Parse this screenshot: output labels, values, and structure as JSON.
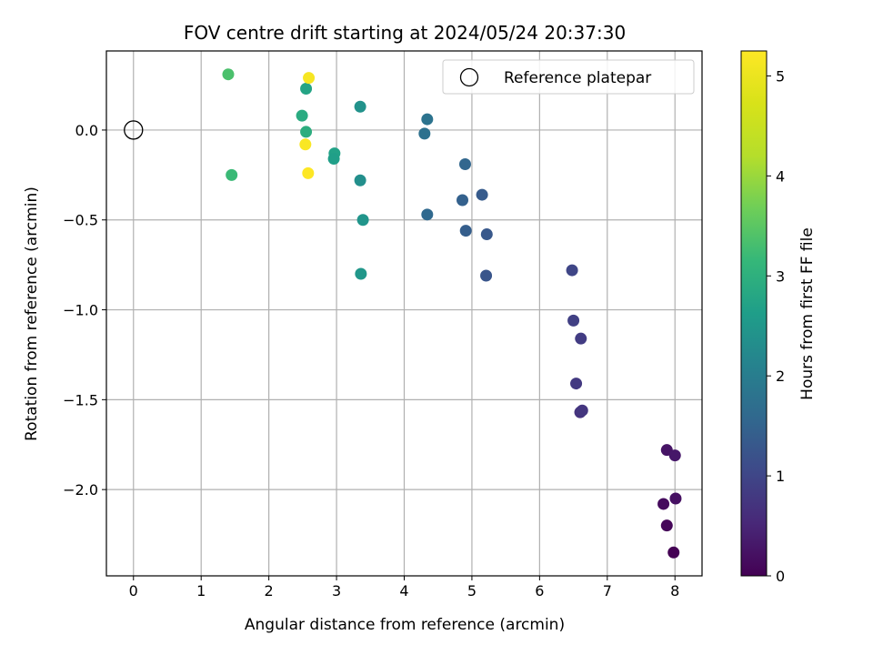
{
  "chart_data": {
    "type": "scatter",
    "title": "FOV centre drift starting at 2024/05/24 20:37:30",
    "xlabel": "Angular distance from reference (arcmin)",
    "ylabel": "Rotation from reference (arcmin)",
    "xlim": [
      -0.4,
      8.4
    ],
    "ylim": [
      -2.48,
      0.44
    ],
    "xticks": [
      0,
      1,
      2,
      3,
      4,
      5,
      6,
      7,
      8
    ],
    "yticks": [
      0.0,
      -0.5,
      -1.0,
      -1.5,
      -2.0
    ],
    "xtick_labels": [
      "0",
      "1",
      "2",
      "3",
      "4",
      "5",
      "6",
      "7",
      "8"
    ],
    "ytick_labels": [
      "0.0",
      "−0.5",
      "−1.0",
      "−1.5",
      "−2.0"
    ],
    "grid": true,
    "legend": {
      "position": "top-right",
      "entries": [
        "Reference platepar"
      ]
    },
    "reference_point": {
      "x": 0,
      "y": 0,
      "label": "Reference platepar"
    },
    "colorbar": {
      "label": "Hours from first FF file",
      "range": [
        0,
        5.25
      ],
      "ticks": [
        0,
        1,
        2,
        3,
        4,
        5
      ],
      "tick_labels": [
        "0",
        "1",
        "2",
        "3",
        "4",
        "5"
      ],
      "colormap": "viridis"
    },
    "points": [
      {
        "x": 7.98,
        "y": -2.35,
        "hours": 0.0
      },
      {
        "x": 7.88,
        "y": -2.2,
        "hours": 0.08
      },
      {
        "x": 7.83,
        "y": -2.08,
        "hours": 0.13
      },
      {
        "x": 8.01,
        "y": -2.05,
        "hours": 0.2
      },
      {
        "x": 7.88,
        "y": -1.78,
        "hours": 0.25
      },
      {
        "x": 8.0,
        "y": -1.81,
        "hours": 0.3
      },
      {
        "x": 6.6,
        "y": -1.57,
        "hours": 0.7
      },
      {
        "x": 6.63,
        "y": -1.56,
        "hours": 0.75
      },
      {
        "x": 6.54,
        "y": -1.41,
        "hours": 0.8
      },
      {
        "x": 6.61,
        "y": -1.16,
        "hours": 0.85
      },
      {
        "x": 6.5,
        "y": -1.06,
        "hours": 0.9
      },
      {
        "x": 6.48,
        "y": -0.78,
        "hours": 1.0
      },
      {
        "x": 5.21,
        "y": -0.81,
        "hours": 1.25
      },
      {
        "x": 5.22,
        "y": -0.58,
        "hours": 1.3
      },
      {
        "x": 4.91,
        "y": -0.56,
        "hours": 1.4
      },
      {
        "x": 5.15,
        "y": -0.36,
        "hours": 1.35
      },
      {
        "x": 4.86,
        "y": -0.39,
        "hours": 1.45
      },
      {
        "x": 4.9,
        "y": -0.19,
        "hours": 1.55
      },
      {
        "x": 4.34,
        "y": -0.47,
        "hours": 1.6
      },
      {
        "x": 4.3,
        "y": -0.02,
        "hours": 1.75
      },
      {
        "x": 4.34,
        "y": 0.06,
        "hours": 1.8
      },
      {
        "x": 3.36,
        "y": -0.8,
        "hours": 2.5
      },
      {
        "x": 3.39,
        "y": -0.5,
        "hours": 2.45
      },
      {
        "x": 3.35,
        "y": -0.28,
        "hours": 2.35
      },
      {
        "x": 3.35,
        "y": 0.13,
        "hours": 2.4
      },
      {
        "x": 2.97,
        "y": -0.13,
        "hours": 2.7
      },
      {
        "x": 2.96,
        "y": -0.16,
        "hours": 2.65
      },
      {
        "x": 2.55,
        "y": 0.23,
        "hours": 2.75
      },
      {
        "x": 2.49,
        "y": 0.08,
        "hours": 2.9
      },
      {
        "x": 2.55,
        "y": -0.01,
        "hours": 2.95
      },
      {
        "x": 1.45,
        "y": -0.25,
        "hours": 3.2
      },
      {
        "x": 1.4,
        "y": 0.31,
        "hours": 3.35
      },
      {
        "x": 2.59,
        "y": 0.29,
        "hours": 5.15
      },
      {
        "x": 2.54,
        "y": -0.08,
        "hours": 5.2
      },
      {
        "x": 2.58,
        "y": -0.24,
        "hours": 5.25
      }
    ]
  }
}
